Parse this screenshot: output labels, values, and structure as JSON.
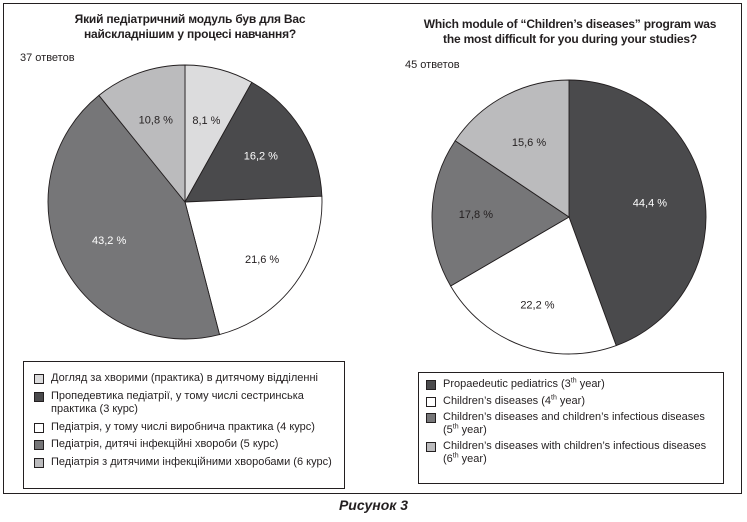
{
  "chart_data": [
    {
      "type": "pie",
      "title": "Який педіатричний модуль був для Вас найскладнішим у процесі навчання?",
      "title_lines": [
        "Який педіатричний модуль був для Вас",
        "найскладнішим у процесі навчання?"
      ],
      "responses_label": "37 ответов",
      "start": "12 o'clock, clockwise",
      "slices": [
        {
          "label": "Догляд за хворими (практика) в дитячому відділенні",
          "value": 8.1,
          "value_label": "8,1 %",
          "color": "#dcdcdd",
          "label_color": "#231f20"
        },
        {
          "label": "Пропедевтика педіатрії, у тому числі сестринська практика (3 курс)",
          "value": 16.2,
          "value_label": "16,2 %",
          "color": "#4a4a4c",
          "label_color": "#ffffff"
        },
        {
          "label": "Педіатрія, у тому числі виробнича практика (4 курс)",
          "value": 21.6,
          "value_label": "21,6 %",
          "color": "#ffffff",
          "label_color": "#231f20"
        },
        {
          "label": "Педіатрія, дитячі інфекційні хвороби (5 курс)",
          "value": 43.2,
          "value_label": "43,2 %",
          "color": "#767678",
          "label_color": "#ffffff"
        },
        {
          "label": "Педіатрія з дитячими інфекційними хворобами (6 курс)",
          "value": 10.8,
          "value_label": "10,8 %",
          "color": "#bbbbbd",
          "label_color": "#231f20"
        }
      ],
      "legend": [
        {
          "text": "Догляд за хворими (практика) в дитячому відділенні"
        },
        {
          "text": "Пропедевтика педіатрії, у тому числі сестринська практика (3 курс)"
        },
        {
          "text": "Педіатрія, у тому числі виробнича практика (4 курс)"
        },
        {
          "text": "Педіатрія, дитячі інфекційні хвороби (5 курс)"
        },
        {
          "text": "Педіатрія з дитячими інфекційними хворобами (6 курс)"
        }
      ],
      "legend_position": "bottom"
    },
    {
      "type": "pie",
      "title": "Which module of “Children’s diseases” program was the most difficult for you during your studies?",
      "title_lines": [
        "Which module of “Children’s diseases” program was",
        "the most difficult for you during your studies?"
      ],
      "responses_label": "45 ответов",
      "start": "12 o'clock, clockwise",
      "slices": [
        {
          "label": "Propaedeutic pediatrics (3th year)",
          "value": 44.4,
          "value_label": "44,4 %",
          "color": "#4a4a4c",
          "label_color": "#ffffff"
        },
        {
          "label": "Children’s diseases (4th year)",
          "value": 22.2,
          "value_label": "22,2 %",
          "color": "#ffffff",
          "label_color": "#231f20"
        },
        {
          "label": "Children’s diseases and children’s infectious diseases (5th year)",
          "value": 17.8,
          "value_label": "17,8 %",
          "color": "#767678",
          "label_color": "#231f20"
        },
        {
          "label": "Children’s diseases with children’s infectious diseases (6th year)",
          "value": 15.6,
          "value_label": "15,6 %",
          "color": "#bbbbbd",
          "label_color": "#231f20"
        }
      ],
      "legend": [
        {
          "pre": "Propaedeutic pediatrics (3",
          "sup": "th",
          "post": " year)"
        },
        {
          "pre": "Children’s diseases (4",
          "sup": "th",
          "post": " year)"
        },
        {
          "pre": "Children’s diseases and children’s infectious diseases (5",
          "sup": "th",
          "post": " year)"
        },
        {
          "pre": "Children’s diseases with children’s infectious diseases (6",
          "sup": "th",
          "post": " year)"
        }
      ],
      "legend_position": "bottom"
    }
  ],
  "caption": "Рисунок 3"
}
